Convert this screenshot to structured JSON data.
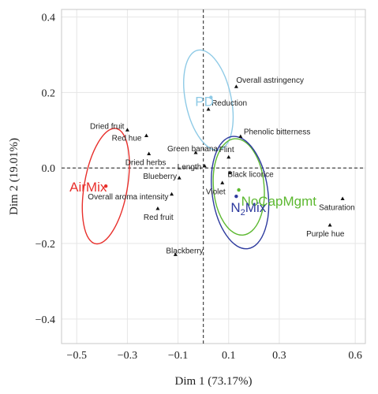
{
  "chart_data": {
    "type": "scatter",
    "xlabel": "Dim 1 (73.17%)",
    "ylabel": "Dim 2 (19.01%)",
    "xlim": [
      -0.56,
      0.64
    ],
    "ylim": [
      -0.465,
      0.42
    ],
    "xticks": [
      {
        "value": -0.5,
        "label": "−0.5"
      },
      {
        "value": -0.3,
        "label": "−0.3"
      },
      {
        "value": -0.1,
        "label": "−0.1"
      },
      {
        "value": 0.1,
        "label": "0.1"
      },
      {
        "value": 0.3,
        "label": "0.3"
      },
      {
        "value": 0.6,
        "label": "0.6"
      }
    ],
    "xgrid": [
      -0.5,
      -0.3,
      -0.1,
      0.1,
      0.3,
      0.6
    ],
    "yticks": [
      {
        "value": 0.4,
        "label": "0.4"
      },
      {
        "value": 0.2,
        "label": "0.2"
      },
      {
        "value": 0.0,
        "label": "0.0"
      },
      {
        "value": -0.2,
        "label": "−0.2"
      },
      {
        "value": -0.4,
        "label": "−0.4"
      }
    ],
    "grid": true,
    "reference_lines": {
      "x": 0,
      "y": 0,
      "style": "dashed"
    },
    "variables": [
      {
        "name": "Overall astringency",
        "x": 0.13,
        "y": 0.215
      },
      {
        "name": "Reduction",
        "x": 0.02,
        "y": 0.155
      },
      {
        "name": "Phenolic bitterness",
        "x": 0.147,
        "y": 0.083
      },
      {
        "name": "Dried fruit",
        "x": -0.3,
        "y": 0.1
      },
      {
        "name": "Red hue",
        "x": -0.225,
        "y": 0.085
      },
      {
        "name": "Dried herbs",
        "x": -0.215,
        "y": 0.037
      },
      {
        "name": "Green banana",
        "x": -0.03,
        "y": 0.04
      },
      {
        "name": "Flint",
        "x": 0.1,
        "y": 0.028
      },
      {
        "name": "Length",
        "x": 0.005,
        "y": 0.005
      },
      {
        "name": "Blueberry",
        "x": -0.095,
        "y": -0.027
      },
      {
        "name": "Black licorice",
        "x": 0.105,
        "y": -0.013
      },
      {
        "name": "Violet",
        "x": 0.075,
        "y": -0.04
      },
      {
        "name": "Overall aroma intensity",
        "x": -0.125,
        "y": -0.07
      },
      {
        "name": "Saturation",
        "x": 0.55,
        "y": -0.082
      },
      {
        "name": "Red fruit",
        "x": -0.18,
        "y": -0.108
      },
      {
        "name": "Purple hue",
        "x": 0.5,
        "y": -0.152
      },
      {
        "name": "Blackberry",
        "x": -0.11,
        "y": -0.23
      }
    ],
    "groups": [
      {
        "name": "PD",
        "label_parts": [
          "PD"
        ],
        "color": "#8ecae6",
        "x": 0.03,
        "y": 0.187,
        "ellipse": {
          "cx": 0.02,
          "cy": 0.18,
          "rx": 0.09,
          "ry": 0.135,
          "angle": -12
        }
      },
      {
        "name": "AirMix",
        "label_parts": [
          "AirMix"
        ],
        "color": "#e8302c",
        "x": -0.385,
        "y": -0.048,
        "ellipse": {
          "cx": -0.385,
          "cy": -0.048,
          "rx": 0.085,
          "ry": 0.155,
          "angle": 10
        }
      },
      {
        "name": "NoCapMgmt",
        "label_parts": [
          "NoCapMgmt"
        ],
        "color": "#5cb830",
        "x": 0.14,
        "y": -0.058,
        "ellipse": {
          "cx": 0.14,
          "cy": -0.05,
          "rx": 0.1,
          "ry": 0.128,
          "angle": -5
        }
      },
      {
        "name": "N2Mix",
        "label_parts": [
          "N",
          "2",
          "Mix"
        ],
        "color": "#2d3a9e",
        "x": 0.13,
        "y": -0.075,
        "ellipse": {
          "cx": 0.145,
          "cy": -0.065,
          "rx": 0.11,
          "ry": 0.15,
          "angle": -8
        }
      }
    ]
  }
}
